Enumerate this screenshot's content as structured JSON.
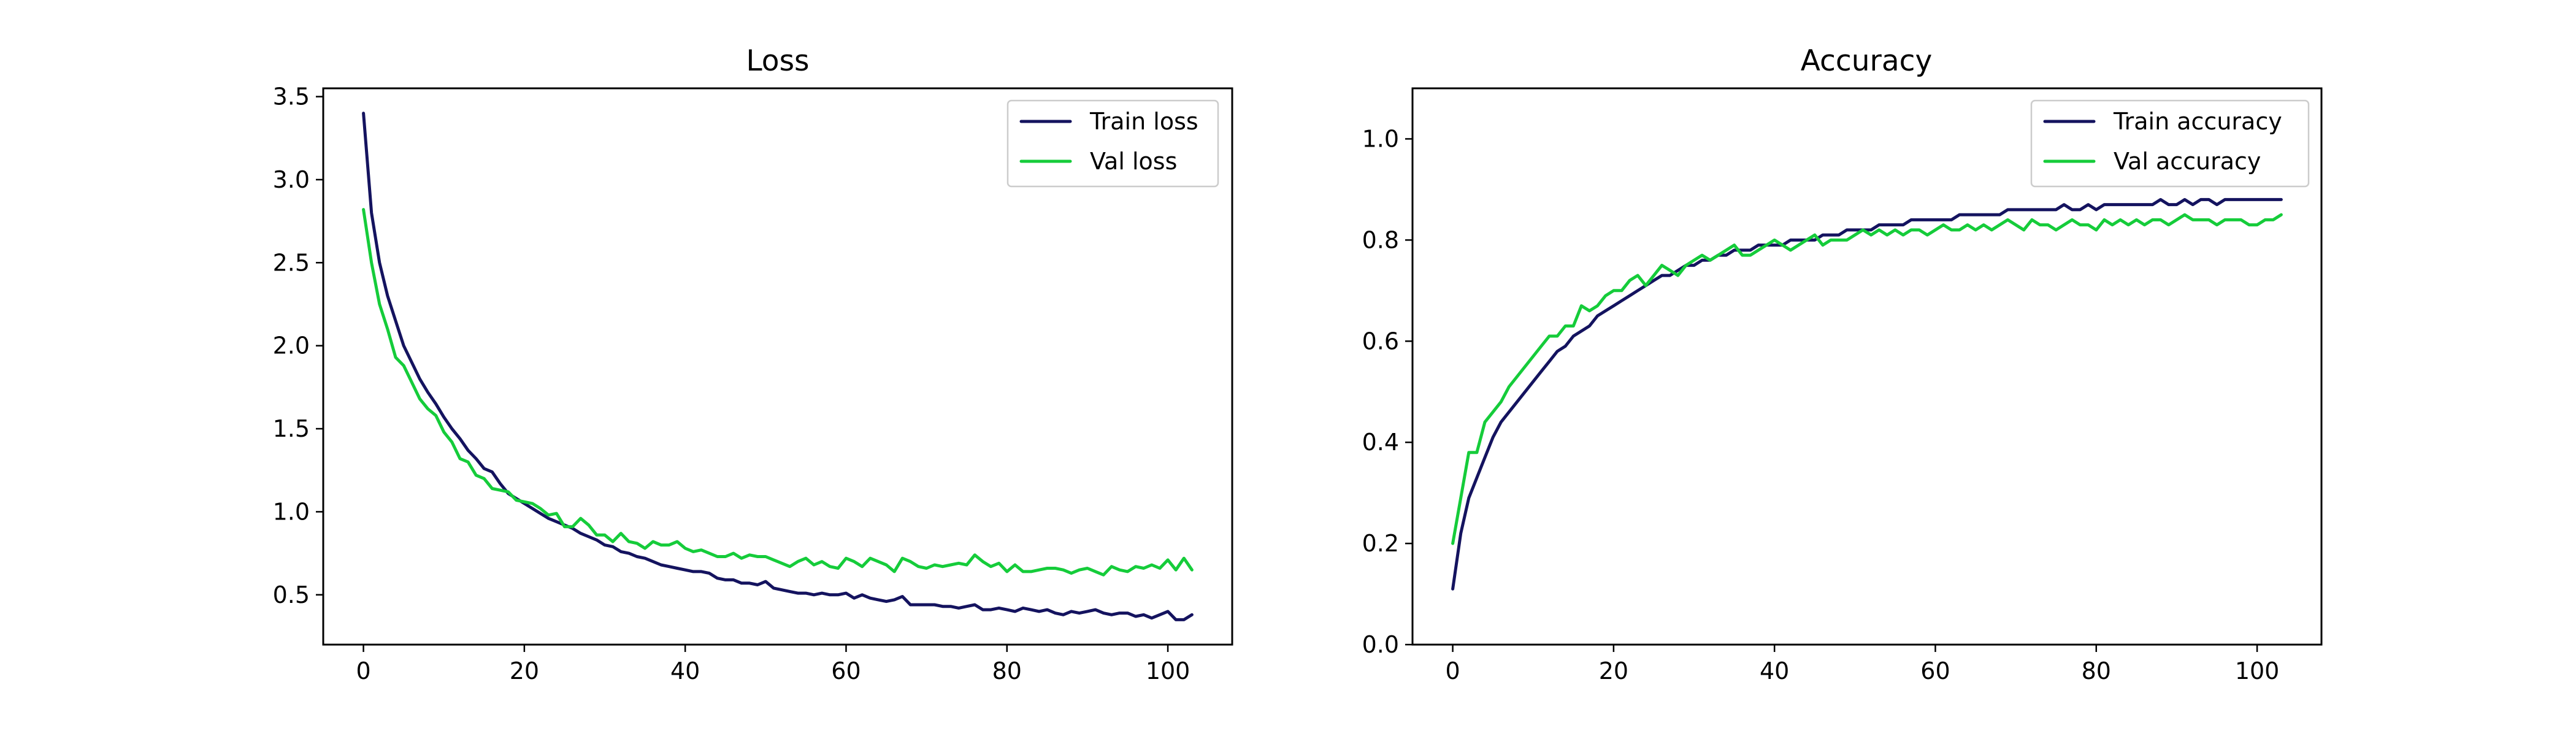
{
  "colors": {
    "train": "#14135f",
    "val": "#15cc3a"
  },
  "chart_data": [
    {
      "type": "line",
      "title": "Loss",
      "xlabel": "",
      "ylabel": "",
      "xlim": [
        -5,
        108
      ],
      "ylim": [
        0.2,
        3.55
      ],
      "xticks": [
        0,
        20,
        40,
        60,
        80,
        100
      ],
      "yticks": [
        0.5,
        1.0,
        1.5,
        2.0,
        2.5,
        3.0,
        3.5
      ],
      "grid": false,
      "legend_position": "top-right",
      "x": [
        0,
        1,
        2,
        3,
        4,
        5,
        6,
        7,
        8,
        9,
        10,
        11,
        12,
        13,
        14,
        15,
        16,
        17,
        18,
        19,
        20,
        21,
        22,
        23,
        24,
        25,
        26,
        27,
        28,
        29,
        30,
        31,
        32,
        33,
        34,
        35,
        36,
        37,
        38,
        39,
        40,
        41,
        42,
        43,
        44,
        45,
        46,
        47,
        48,
        49,
        50,
        51,
        52,
        53,
        54,
        55,
        56,
        57,
        58,
        59,
        60,
        61,
        62,
        63,
        64,
        65,
        66,
        67,
        68,
        69,
        70,
        71,
        72,
        73,
        74,
        75,
        76,
        77,
        78,
        79,
        80,
        81,
        82,
        83,
        84,
        85,
        86,
        87,
        88,
        89,
        90,
        91,
        92,
        93,
        94,
        95,
        96,
        97,
        98,
        99,
        100,
        101,
        102,
        103
      ],
      "series": [
        {
          "name": "Train loss",
          "color_key": "train",
          "values": [
            3.4,
            2.8,
            2.5,
            2.3,
            2.15,
            2.0,
            1.9,
            1.8,
            1.72,
            1.65,
            1.57,
            1.5,
            1.44,
            1.37,
            1.32,
            1.26,
            1.24,
            1.17,
            1.11,
            1.08,
            1.05,
            1.02,
            0.99,
            0.96,
            0.94,
            0.92,
            0.9,
            0.87,
            0.85,
            0.83,
            0.8,
            0.79,
            0.76,
            0.75,
            0.73,
            0.72,
            0.7,
            0.68,
            0.67,
            0.66,
            0.65,
            0.64,
            0.64,
            0.63,
            0.6,
            0.59,
            0.59,
            0.57,
            0.57,
            0.56,
            0.58,
            0.54,
            0.53,
            0.52,
            0.51,
            0.51,
            0.5,
            0.51,
            0.5,
            0.5,
            0.51,
            0.48,
            0.5,
            0.48,
            0.47,
            0.46,
            0.47,
            0.49,
            0.44,
            0.44,
            0.44,
            0.44,
            0.43,
            0.43,
            0.42,
            0.43,
            0.44,
            0.41,
            0.41,
            0.42,
            0.41,
            0.4,
            0.42,
            0.41,
            0.4,
            0.41,
            0.39,
            0.38,
            0.4,
            0.39,
            0.4,
            0.41,
            0.39,
            0.38,
            0.39,
            0.39,
            0.37,
            0.38,
            0.36,
            0.38,
            0.4,
            0.35,
            0.35,
            0.38
          ]
        },
        {
          "name": "Val loss",
          "color_key": "val",
          "values": [
            2.82,
            2.5,
            2.25,
            2.1,
            1.93,
            1.88,
            1.78,
            1.68,
            1.62,
            1.58,
            1.48,
            1.42,
            1.32,
            1.3,
            1.22,
            1.2,
            1.14,
            1.13,
            1.12,
            1.07,
            1.06,
            1.05,
            1.02,
            0.98,
            0.99,
            0.91,
            0.91,
            0.96,
            0.92,
            0.86,
            0.86,
            0.82,
            0.87,
            0.82,
            0.81,
            0.78,
            0.82,
            0.8,
            0.8,
            0.82,
            0.78,
            0.76,
            0.77,
            0.75,
            0.73,
            0.73,
            0.75,
            0.72,
            0.74,
            0.73,
            0.73,
            0.71,
            0.69,
            0.67,
            0.7,
            0.72,
            0.68,
            0.7,
            0.67,
            0.66,
            0.72,
            0.7,
            0.67,
            0.72,
            0.7,
            0.68,
            0.64,
            0.72,
            0.7,
            0.67,
            0.66,
            0.68,
            0.67,
            0.68,
            0.69,
            0.68,
            0.74,
            0.7,
            0.67,
            0.69,
            0.64,
            0.68,
            0.64,
            0.64,
            0.65,
            0.66,
            0.66,
            0.65,
            0.63,
            0.65,
            0.66,
            0.64,
            0.62,
            0.67,
            0.65,
            0.64,
            0.67,
            0.66,
            0.68,
            0.66,
            0.71,
            0.65,
            0.72,
            0.65
          ]
        }
      ]
    },
    {
      "type": "line",
      "title": "Accuracy",
      "xlabel": "",
      "ylabel": "",
      "xlim": [
        -5,
        108
      ],
      "ylim": [
        0.0,
        1.1
      ],
      "xticks": [
        0,
        20,
        40,
        60,
        80,
        100
      ],
      "yticks": [
        0.0,
        0.2,
        0.4,
        0.6,
        0.8,
        1.0
      ],
      "grid": false,
      "legend_position": "top-right",
      "x": [
        0,
        1,
        2,
        3,
        4,
        5,
        6,
        7,
        8,
        9,
        10,
        11,
        12,
        13,
        14,
        15,
        16,
        17,
        18,
        19,
        20,
        21,
        22,
        23,
        24,
        25,
        26,
        27,
        28,
        29,
        30,
        31,
        32,
        33,
        34,
        35,
        36,
        37,
        38,
        39,
        40,
        41,
        42,
        43,
        44,
        45,
        46,
        47,
        48,
        49,
        50,
        51,
        52,
        53,
        54,
        55,
        56,
        57,
        58,
        59,
        60,
        61,
        62,
        63,
        64,
        65,
        66,
        67,
        68,
        69,
        70,
        71,
        72,
        73,
        74,
        75,
        76,
        77,
        78,
        79,
        80,
        81,
        82,
        83,
        84,
        85,
        86,
        87,
        88,
        89,
        90,
        91,
        92,
        93,
        94,
        95,
        96,
        97,
        98,
        99,
        100,
        101,
        102,
        103
      ],
      "series": [
        {
          "name": "Train accuracy",
          "color_key": "train",
          "values": [
            0.11,
            0.22,
            0.29,
            0.33,
            0.37,
            0.41,
            0.44,
            0.46,
            0.48,
            0.5,
            0.52,
            0.54,
            0.56,
            0.58,
            0.59,
            0.61,
            0.62,
            0.63,
            0.65,
            0.66,
            0.67,
            0.68,
            0.69,
            0.7,
            0.71,
            0.72,
            0.73,
            0.73,
            0.74,
            0.75,
            0.75,
            0.76,
            0.76,
            0.77,
            0.77,
            0.78,
            0.78,
            0.78,
            0.79,
            0.79,
            0.79,
            0.79,
            0.8,
            0.8,
            0.8,
            0.8,
            0.81,
            0.81,
            0.81,
            0.82,
            0.82,
            0.82,
            0.82,
            0.83,
            0.83,
            0.83,
            0.83,
            0.84,
            0.84,
            0.84,
            0.84,
            0.84,
            0.84,
            0.85,
            0.85,
            0.85,
            0.85,
            0.85,
            0.85,
            0.86,
            0.86,
            0.86,
            0.86,
            0.86,
            0.86,
            0.86,
            0.87,
            0.86,
            0.86,
            0.87,
            0.86,
            0.87,
            0.87,
            0.87,
            0.87,
            0.87,
            0.87,
            0.87,
            0.88,
            0.87,
            0.87,
            0.88,
            0.87,
            0.88,
            0.88,
            0.87,
            0.88,
            0.88,
            0.88,
            0.88,
            0.88,
            0.88,
            0.88,
            0.88
          ]
        },
        {
          "name": "Val accuracy",
          "color_key": "val",
          "values": [
            0.2,
            0.29,
            0.38,
            0.38,
            0.44,
            0.46,
            0.48,
            0.51,
            0.53,
            0.55,
            0.57,
            0.59,
            0.61,
            0.61,
            0.63,
            0.63,
            0.67,
            0.66,
            0.67,
            0.69,
            0.7,
            0.7,
            0.72,
            0.73,
            0.71,
            0.73,
            0.75,
            0.74,
            0.73,
            0.75,
            0.76,
            0.77,
            0.76,
            0.77,
            0.78,
            0.79,
            0.77,
            0.77,
            0.78,
            0.79,
            0.8,
            0.79,
            0.78,
            0.79,
            0.8,
            0.81,
            0.79,
            0.8,
            0.8,
            0.8,
            0.81,
            0.82,
            0.81,
            0.82,
            0.81,
            0.82,
            0.81,
            0.82,
            0.82,
            0.81,
            0.82,
            0.83,
            0.82,
            0.82,
            0.83,
            0.82,
            0.83,
            0.82,
            0.83,
            0.84,
            0.83,
            0.82,
            0.84,
            0.83,
            0.83,
            0.82,
            0.83,
            0.84,
            0.83,
            0.83,
            0.82,
            0.84,
            0.83,
            0.84,
            0.83,
            0.84,
            0.83,
            0.84,
            0.84,
            0.83,
            0.84,
            0.85,
            0.84,
            0.84,
            0.84,
            0.83,
            0.84,
            0.84,
            0.84,
            0.83,
            0.83,
            0.84,
            0.84,
            0.85
          ]
        }
      ]
    }
  ]
}
